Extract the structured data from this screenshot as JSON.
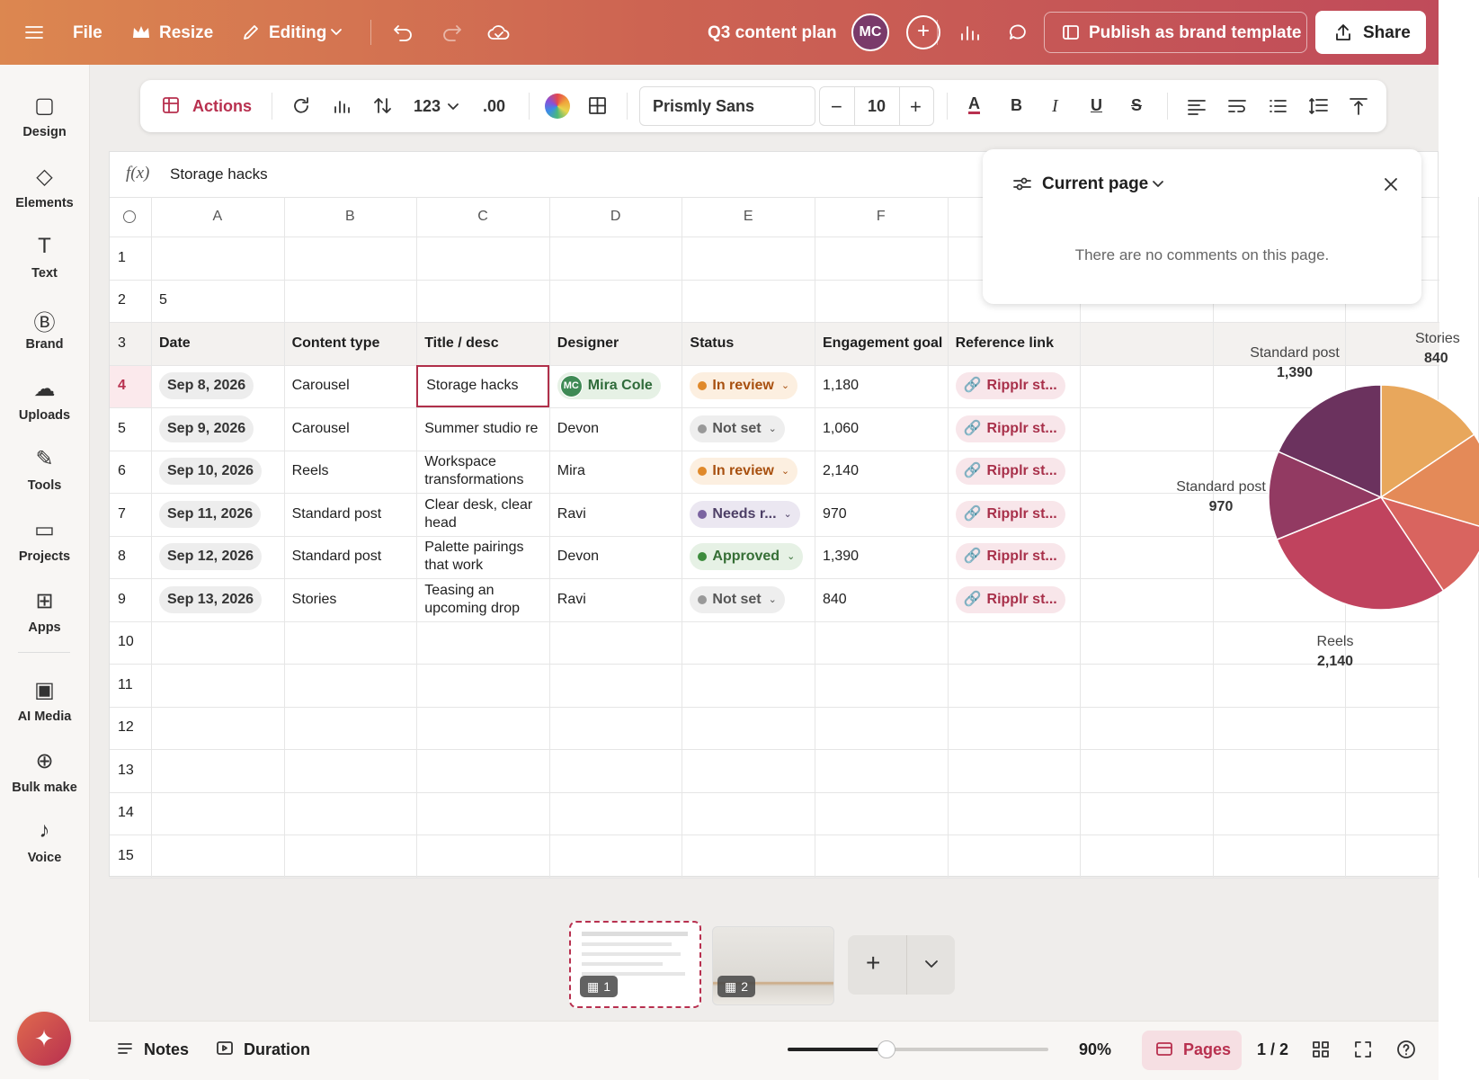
{
  "topbar": {
    "file": "File",
    "resize": "Resize",
    "editing": "Editing",
    "doc_title": "Q3 content plan",
    "avatar": "MC",
    "publish": "Publish as brand template",
    "share": "Share"
  },
  "sidebar": [
    {
      "label": "Design"
    },
    {
      "label": "Elements"
    },
    {
      "label": "Text"
    },
    {
      "label": "Brand"
    },
    {
      "label": "Uploads"
    },
    {
      "label": "Tools"
    },
    {
      "label": "Projects"
    },
    {
      "label": "Apps"
    },
    {
      "label": "AI Media"
    },
    {
      "label": "Bulk make"
    },
    {
      "label": "Voice"
    }
  ],
  "toolbar": {
    "actions": "Actions",
    "number_format": "123",
    "decimals": ".00",
    "font": "Prismly Sans",
    "font_size": 10
  },
  "formula": {
    "fx": "f(x)",
    "content": "Storage hacks"
  },
  "sheet": {
    "columns": [
      "A",
      "B",
      "C",
      "D",
      "E",
      "F"
    ],
    "row_numbers": [
      1,
      2,
      3,
      4,
      5,
      6,
      7,
      8,
      9,
      10,
      11,
      12,
      13,
      14,
      15
    ],
    "cell_a2": 5,
    "header_row": [
      "Date",
      "Content type",
      "Title / desc",
      "Designer",
      "Status",
      "Engagement goal",
      "Reference link"
    ],
    "rows": [
      {
        "date": "Sep 8, 2026",
        "type": "Carousel",
        "title": "Storage hacks",
        "designer": {
          "initials": "MC",
          "name": "Mira Cole"
        },
        "status": "In review",
        "goal": "1,180",
        "link": "Ripplr st..."
      },
      {
        "date": "Sep 9, 2026",
        "type": "Carousel",
        "title": "Summer studio re",
        "designer": "Devon",
        "status": "Not set",
        "goal": "1,060",
        "link": "Ripplr st..."
      },
      {
        "date": "Sep 10, 2026",
        "type": "Reels",
        "title": "Workspace transformations",
        "designer": "Mira",
        "status": "In review",
        "goal": "2,140",
        "link": "Ripplr st..."
      },
      {
        "date": "Sep 11, 2026",
        "type": "Standard post",
        "title": "Clear desk, clear head",
        "designer": "Ravi",
        "status": "Needs r...",
        "goal": "970",
        "link": "Ripplr st..."
      },
      {
        "date": "Sep 12, 2026",
        "type": "Standard post",
        "title": "Palette pairings that work",
        "designer": "Devon",
        "status": "Approved",
        "goal": "1,390",
        "link": "Ripplr st..."
      },
      {
        "date": "Sep 13, 2026",
        "type": "Stories",
        "title": "Teasing an upcoming drop",
        "designer": "Ravi",
        "status": "Not set",
        "goal": "840",
        "link": "Ripplr st..."
      }
    ]
  },
  "pie": {
    "slices": [
      {
        "value": 1180,
        "color": "#e8a75c"
      },
      {
        "value": 1060,
        "color": "#e48a58"
      },
      {
        "value": 840,
        "color": "#d9645f"
      },
      {
        "value": 2140,
        "color": "#c0435e"
      },
      {
        "value": 970,
        "color": "#923a62"
      },
      {
        "value": 1390,
        "color": "#6b325e"
      }
    ],
    "labels": [
      {
        "name": "Standard post",
        "value_label": "1,390"
      },
      {
        "name": "Standard post",
        "value_label": "970"
      },
      {
        "name": "Reels",
        "value_label": "2,140"
      },
      {
        "name": "Stories",
        "value_label": "840"
      }
    ]
  },
  "comments": {
    "title": "Current page",
    "empty": "There are no comments on this page."
  },
  "pages": {
    "thumbs": [
      "1",
      "2"
    ]
  },
  "bottombar": {
    "notes": "Notes",
    "duration": "Duration",
    "zoom": "90%",
    "pages": "Pages",
    "counter": "1 / 2"
  }
}
